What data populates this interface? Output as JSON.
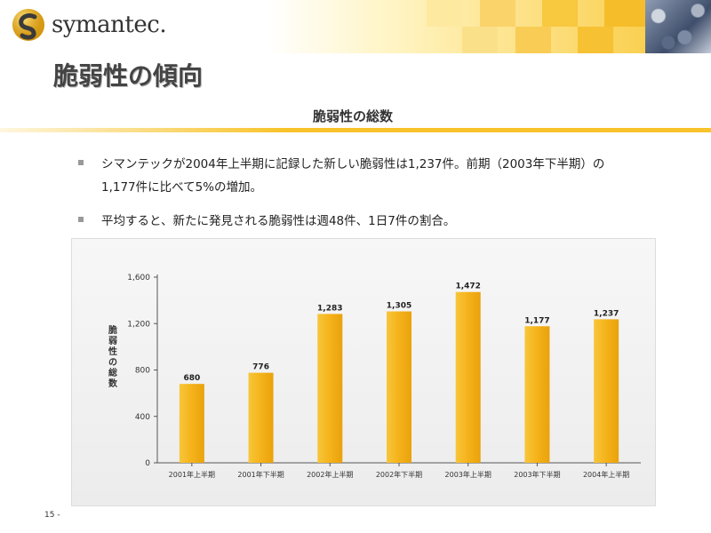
{
  "header": {
    "logo_text": "symantec.",
    "page_title": "脆弱性の傾向",
    "colors": {
      "accent": "#f8c32a",
      "bar": "#f5b21a"
    }
  },
  "section": {
    "title": "脆弱性の総数"
  },
  "bullets": [
    {
      "line1": "シマンテックが2004年上半期に記録した新しい脆弱性は1,237件。前期（2003年下半期）の",
      "line2": "1,177件に比べて5%の増加。"
    },
    {
      "line1": "平均すると、新たに発見される脆弱性は週48件、1日7件の割合。",
      "line2": ""
    }
  ],
  "chart_data": {
    "type": "bar",
    "categories": [
      "2001年上半期",
      "2001年下半期",
      "2002年上半期",
      "2002年下半期",
      "2003年上半期",
      "2003年下半期",
      "2004年上半期"
    ],
    "values": [
      680,
      776,
      1283,
      1305,
      1472,
      1177,
      1237
    ],
    "value_labels": [
      "680",
      "776",
      "1,283",
      "1,305",
      "1,472",
      "1,177",
      "1,237"
    ],
    "title": "",
    "xlabel": "",
    "ylabel": "脆弱性の総数",
    "ylim": [
      0,
      1600
    ],
    "yticks": [
      0,
      400,
      800,
      1200,
      1600
    ],
    "ytick_labels": [
      "0",
      "400",
      "800",
      "1,200",
      "1,600"
    ],
    "grid": false,
    "legend": "none"
  },
  "footer": {
    "page_number": "15 -"
  }
}
